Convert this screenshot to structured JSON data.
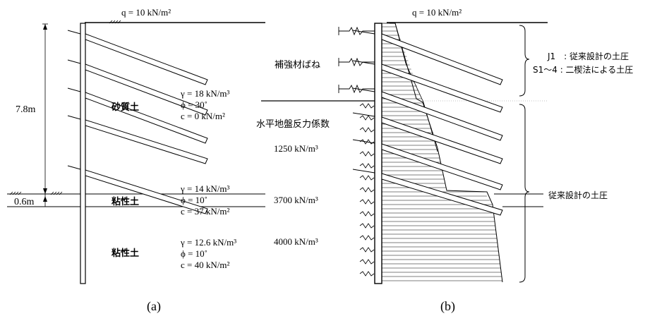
{
  "panel_a": {
    "caption": "(a)",
    "surcharge": "q = 10 kN/m²",
    "height_upper": "7.8m",
    "height_lower": "0.6m",
    "layers": [
      {
        "name": "砂質土",
        "props": [
          "γ = 18 kN/m³",
          "ϕ = 30˚",
          "c = 0 kN/m²"
        ]
      },
      {
        "name": "粘性土",
        "props": [
          "γ = 14 kN/m³",
          "ϕ = 10˚",
          "c = 37 kN/m²"
        ]
      },
      {
        "name": "粘性土",
        "props": [
          "γ = 12.6 kN/m³",
          "ϕ = 10˚",
          "c = 40 kN/m²"
        ]
      }
    ]
  },
  "panel_b": {
    "caption": "(b)",
    "surcharge": "q = 10 kN/m²",
    "spring_label": "補強材ばね",
    "subgrade_label": "水平地盤反力係数",
    "k_values": [
      "1250 kN/m³",
      "3700 kN/m³",
      "4000 kN/m³"
    ],
    "legend_j1": "J1　: 従来設計の土圧",
    "legend_s": "S1～4 : 二楔法による土圧",
    "conventional_label": "従来設計の土圧"
  }
}
